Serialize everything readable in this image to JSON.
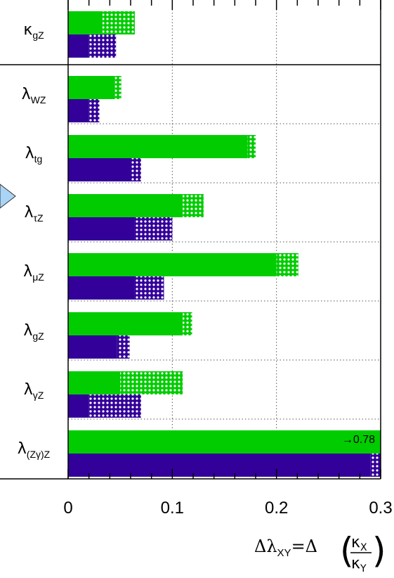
{
  "chart_data": {
    "type": "bar",
    "orientation": "horizontal",
    "categories": [
      "κgZ",
      "λWZ",
      "λtg",
      "λτZ",
      "λμZ",
      "λgZ",
      "λγZ",
      "λ(Zγ)Z"
    ],
    "category_labels": [
      {
        "base": "κ",
        "sub": "gZ"
      },
      {
        "base": "λ",
        "sub": "WZ"
      },
      {
        "base": "λ",
        "sub": "tg"
      },
      {
        "base": "λ",
        "sub": "τZ"
      },
      {
        "base": "λ",
        "sub": "μZ"
      },
      {
        "base": "λ",
        "sub": "gZ"
      },
      {
        "base": "λ",
        "sub": "γZ"
      },
      {
        "base": "λ",
        "sub": "(Zγ)Z"
      }
    ],
    "series": [
      {
        "color": "#00cc00",
        "values": [
          0.033,
          0.045,
          0.172,
          0.11,
          0.2,
          0.11,
          0.05,
          0.3
        ],
        "values_with_hatched": [
          0.064,
          0.051,
          0.18,
          0.13,
          0.221,
          0.119,
          0.11,
          0.3
        ]
      },
      {
        "color": "#330099",
        "values": [
          0.02,
          0.02,
          0.061,
          0.064,
          0.064,
          0.047,
          0.02,
          0.29
        ],
        "values_with_hatched": [
          0.046,
          0.03,
          0.07,
          0.1,
          0.092,
          0.059,
          0.07,
          0.3
        ]
      }
    ],
    "xlim": [
      0,
      0.3
    ],
    "xticks": [
      "0",
      "0.1",
      "0.2",
      "0.3"
    ],
    "xlabel": {
      "lhs": "Δλ",
      "lhs_sub": "XY",
      "eq": "=Δ",
      "num": "κ",
      "num_sub": "X",
      "den": "κ",
      "den_sub": "Y"
    },
    "annotation": "→0.78",
    "grid": true,
    "marker_color": "#aad4f5"
  }
}
